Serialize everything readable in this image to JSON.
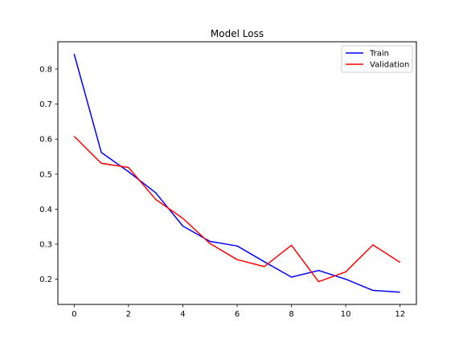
{
  "chart_data": {
    "type": "line",
    "title": "Model Loss",
    "xlabel": "",
    "ylabel": "",
    "x": [
      0,
      1,
      2,
      3,
      4,
      5,
      6,
      7,
      8,
      9,
      10,
      11,
      12
    ],
    "xlim": [
      -0.6,
      12.6
    ],
    "ylim": [
      0.128,
      0.878
    ],
    "xticks": [
      0,
      2,
      4,
      6,
      8,
      10,
      12
    ],
    "yticks": [
      0.2,
      0.3,
      0.4,
      0.5,
      0.6,
      0.7,
      0.8
    ],
    "grid": false,
    "legend": "top-right",
    "series": [
      {
        "name": "Train",
        "color": "#0000ff",
        "values": [
          0.843,
          0.562,
          0.507,
          0.447,
          0.352,
          0.308,
          0.295,
          0.25,
          0.206,
          0.225,
          0.2,
          0.168,
          0.163
        ]
      },
      {
        "name": "Validation",
        "color": "#ff0000",
        "values": [
          0.608,
          0.531,
          0.519,
          0.428,
          0.374,
          0.302,
          0.256,
          0.236,
          0.297,
          0.193,
          0.221,
          0.298,
          0.248
        ]
      }
    ]
  }
}
